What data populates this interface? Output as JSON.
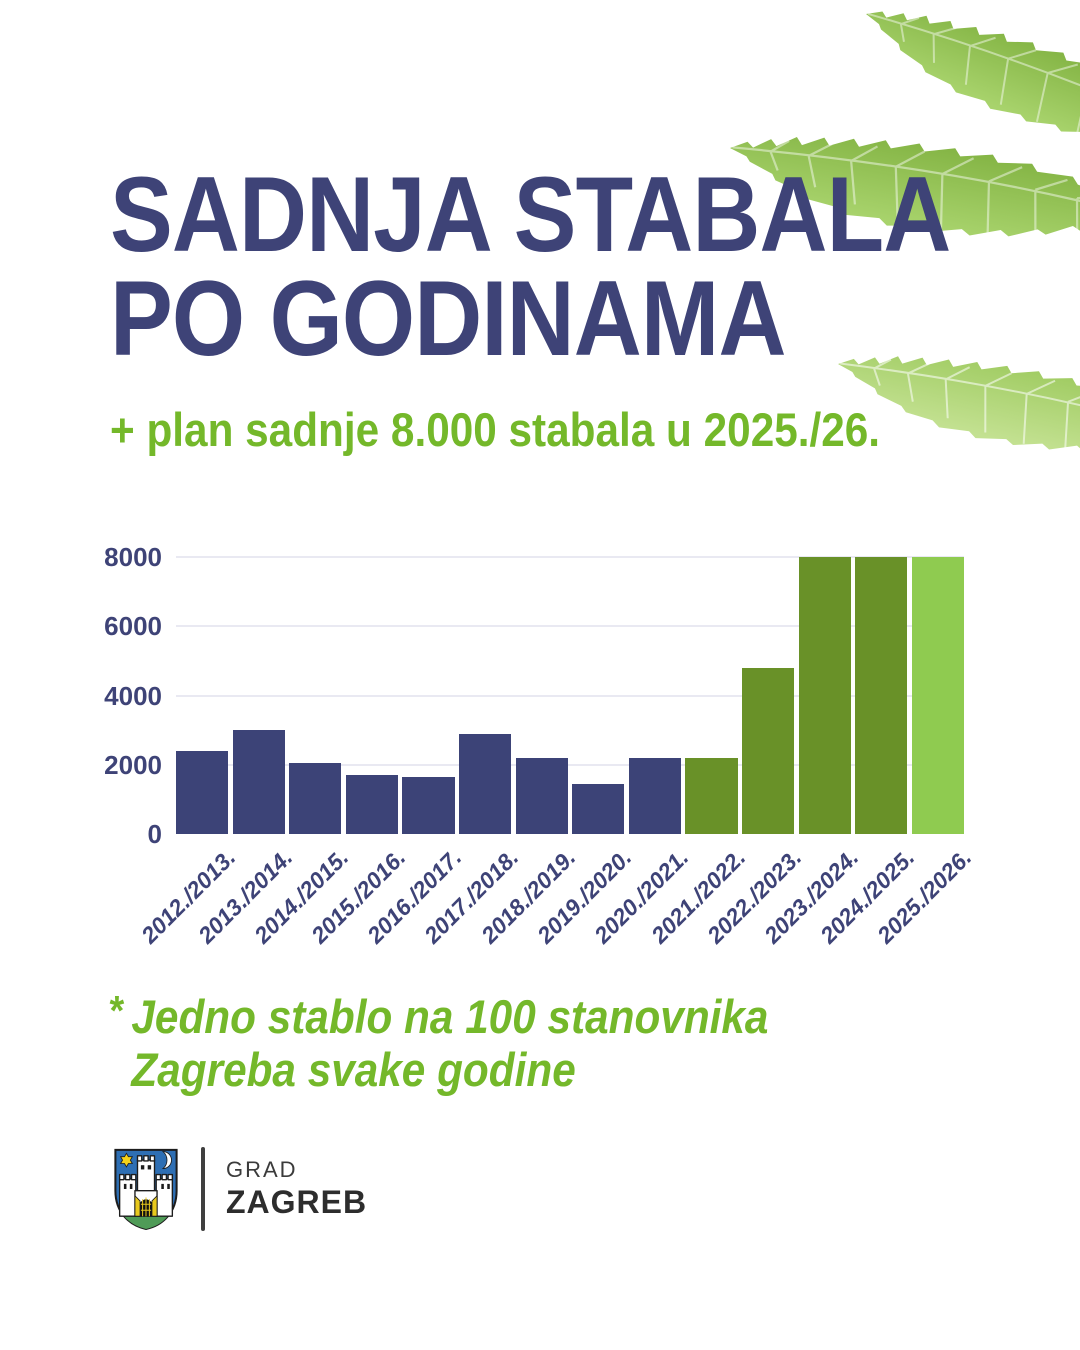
{
  "poster": {
    "title_line1": "SADNJA STABALA",
    "title_line2": "PO GODINAMA",
    "subtitle": "+ plan sadnje 8.000 stabala u 2025./26.",
    "footnote": {
      "marker": "*",
      "line1": "Jedno stablo na 100 stanovnika",
      "line2": "Zagreba svake godine"
    }
  },
  "chart_data": {
    "type": "bar",
    "title": "SADNJA STABALA PO GODINAMA",
    "categories": [
      "2012./2013.",
      "2013./2014.",
      "2014./2015.",
      "2015./2016.",
      "2016./2017.",
      "2017./2018.",
      "2018./2019.",
      "2019./2020.",
      "2020./2021.",
      "2021./2022.",
      "2022./2023.",
      "2023./2024.",
      "2024./2025.",
      "2025./2026."
    ],
    "values": [
      2400,
      3000,
      2050,
      1700,
      1650,
      2900,
      2200,
      1450,
      2200,
      2200,
      4800,
      8000,
      8000,
      8000
    ],
    "bar_colors": [
      "#3c4377",
      "#3c4377",
      "#3c4377",
      "#3c4377",
      "#3c4377",
      "#3c4377",
      "#3c4377",
      "#3c4377",
      "#3c4377",
      "#699128",
      "#699128",
      "#699128",
      "#699128",
      "#8fcb50"
    ],
    "xlabel": "",
    "ylabel": "",
    "ylim": [
      0,
      8000
    ],
    "yticks": [
      0,
      2000,
      4000,
      6000,
      8000
    ],
    "grid": true,
    "legend": null
  },
  "logo": {
    "org_small": "GRAD",
    "org_large": "ZAGREB"
  },
  "icons": {
    "leaves": "leaf-decoration",
    "coat_of_arms": "zagreb-coat-of-arms-icon"
  },
  "colors": {
    "title_navy": "#3e4377",
    "accent_green": "#74b82a",
    "bar_navy": "#3c4377",
    "bar_olive_green": "#699128",
    "bar_light_green": "#8fcb50",
    "gridline": "#e9e9f2",
    "logo_text": "#2d2d2d",
    "shield_blue": "#2e6fb4",
    "shield_green": "#4f9b57",
    "heraldic_yellow": "#f4d219"
  }
}
